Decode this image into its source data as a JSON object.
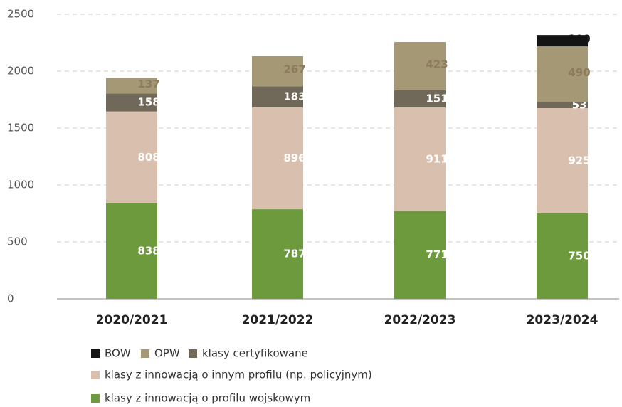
{
  "chart_data": {
    "type": "stacked_bar",
    "categories": [
      "2020/2021",
      "2021/2022",
      "2022/2023",
      "2023/2024"
    ],
    "series": [
      {
        "name": "klasy z innowacją o profilu wojskowym",
        "color": "#6e9a3e",
        "label_color": "#ffffff",
        "values": [
          838,
          787,
          771,
          750
        ]
      },
      {
        "name": "klasy z innowacją o innym profilu (np. policyjnym)",
        "color": "#d9bfae",
        "label_color": "#ffffff",
        "values": [
          808,
          896,
          911,
          925
        ]
      },
      {
        "name": "klasy certyfikowane",
        "color": "#706959",
        "label_color": "#ffffff",
        "values": [
          158,
          183,
          151,
          53
        ]
      },
      {
        "name": "OPW",
        "color": "#a59875",
        "label_color": "#8a7c5c",
        "values": [
          137,
          267,
          423,
          490
        ]
      },
      {
        "name": "BOW",
        "color": "#141414",
        "label_color": "#141414",
        "values": [
          null,
          null,
          null,
          100
        ]
      }
    ],
    "ylim": [
      0,
      2500
    ],
    "yticks": [
      0,
      500,
      1000,
      1500,
      2000,
      2500
    ],
    "grid": true
  }
}
